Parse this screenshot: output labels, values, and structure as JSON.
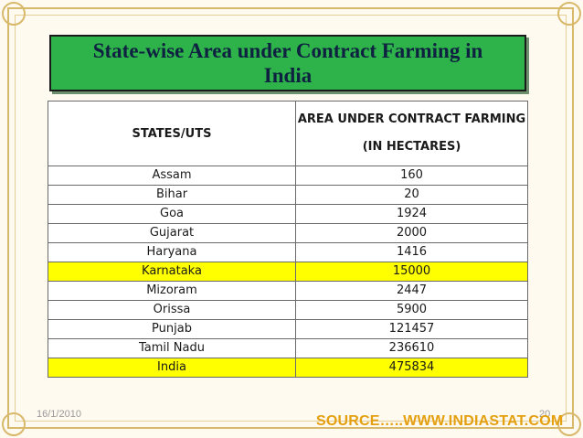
{
  "title": "State-wise Area under Contract Farming in India",
  "table": {
    "headers": [
      "STATES/UTS",
      "AREA UNDER CONTRACT FARMING",
      "(IN HECTARES)"
    ],
    "rows": [
      {
        "state": "Assam",
        "area": "160"
      },
      {
        "state": "Bihar",
        "area": "20"
      },
      {
        "state": "Goa",
        "area": "1924"
      },
      {
        "state": "Gujarat",
        "area": "2000"
      },
      {
        "state": "Haryana",
        "area": "1416"
      },
      {
        "state": "Karnataka",
        "area": "15000"
      },
      {
        "state": "Mizoram",
        "area": "2447"
      },
      {
        "state": "Orissa",
        "area": "5900"
      },
      {
        "state": "Punjab",
        "area": "121457"
      },
      {
        "state": "Tamil Nadu",
        "area": "236610"
      },
      {
        "state": "India",
        "area": "475834"
      }
    ],
    "highlight_color": "#ffff00"
  },
  "footer": {
    "date": "16/1/2010",
    "page": "20",
    "source": "SOURCE…..WWW.INDIASTAT.COM"
  }
}
